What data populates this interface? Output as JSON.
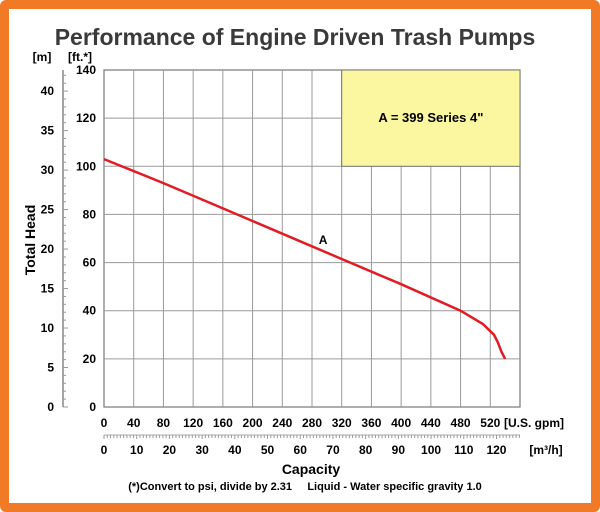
{
  "chart_data": {
    "type": "line",
    "title": "Performance of Engine Driven Trash Pumps",
    "ylabel": "Total Head",
    "xlabel": "Capacity",
    "y_left_unit": "[m]",
    "y_right_unit": "[ft.*]",
    "x_primary_unit": "[U.S. gpm]",
    "x_secondary_unit": "[m³/h]",
    "x_primary_ticks": [
      "0",
      "40",
      "80",
      "120",
      "160",
      "200",
      "240",
      "280",
      "320",
      "360",
      "400",
      "440",
      "480",
      "520"
    ],
    "x_secondary_ticks": [
      "0",
      "10",
      "20",
      "30",
      "40",
      "50",
      "60",
      "70",
      "80",
      "90",
      "100",
      "110",
      "120"
    ],
    "y_ft_ticks": [
      "0",
      "20",
      "40",
      "60",
      "80",
      "100",
      "120",
      "140"
    ],
    "y_m_ticks": [
      "0",
      "5",
      "10",
      "15",
      "20",
      "25",
      "30",
      "35",
      "40"
    ],
    "xlim": [
      0,
      560
    ],
    "ylim": [
      0,
      140
    ],
    "grid": true,
    "legend_box": {
      "text": "A = 399 Series 4\"",
      "color": "#fbf7a0",
      "placement": "top-right"
    },
    "series": [
      {
        "name": "A",
        "color": "#e31b23",
        "x": [
          0,
          80,
          160,
          240,
          320,
          400,
          480,
          510,
          525,
          530,
          535,
          540
        ],
        "y": [
          103,
          93,
          82.5,
          72,
          61.5,
          51,
          40,
          34.5,
          30,
          27,
          23,
          20
        ]
      }
    ],
    "footnote": "(*)Convert to psi, divide by 2.31     Liquid - Water specific gravity 1.0"
  }
}
